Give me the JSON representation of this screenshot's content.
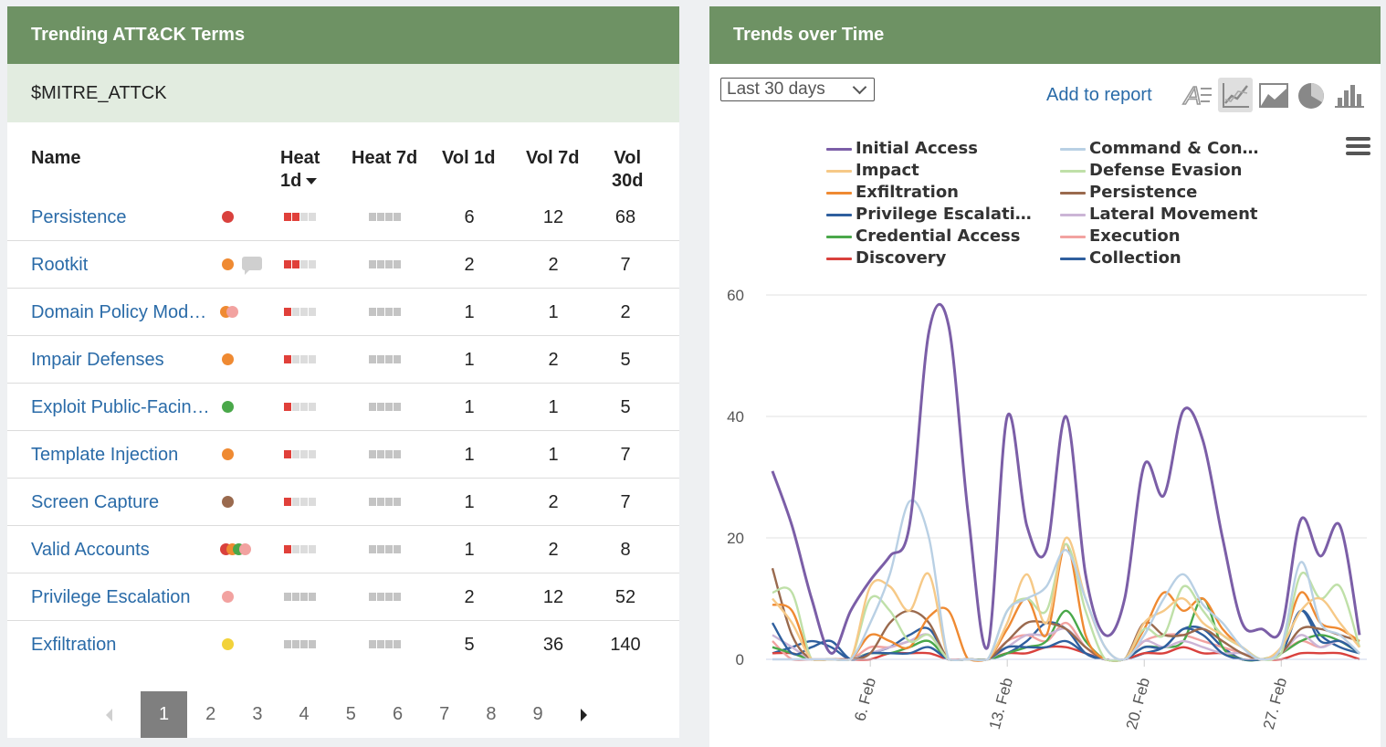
{
  "left_panel": {
    "title": "Trending ATT&CK Terms",
    "subtitle": "$MITRE_ATTCK",
    "columns": {
      "name": "Name",
      "heat1d_line1": "Heat",
      "heat1d_line2": "1d",
      "heat7d": "Heat 7d",
      "vol1d": "Vol 1d",
      "vol7d": "Vol 7d",
      "vol30d_line1": "Vol",
      "vol30d_line2": "30d"
    },
    "rows": [
      {
        "name": "Persistence",
        "dots": [
          "#d9413d"
        ],
        "comment": false,
        "heat1d": 2,
        "heat7d": 0,
        "heat_muted": false,
        "vol1d": "6",
        "vol7d": "12",
        "vol30d": "68"
      },
      {
        "name": "Rootkit",
        "dots": [
          "#ef8a32"
        ],
        "comment": true,
        "heat1d": 2,
        "heat7d": 0,
        "heat_muted": false,
        "vol1d": "2",
        "vol7d": "2",
        "vol30d": "7"
      },
      {
        "name": "Domain Policy Mod…",
        "dots": [
          "#ef8a32",
          "#f2a2a0"
        ],
        "comment": false,
        "heat1d": 1,
        "heat7d": 0,
        "heat_muted": false,
        "vol1d": "1",
        "vol7d": "1",
        "vol30d": "2"
      },
      {
        "name": "Impair Defenses",
        "dots": [
          "#ef8a32"
        ],
        "comment": false,
        "heat1d": 1,
        "heat7d": 0,
        "heat_muted": false,
        "vol1d": "1",
        "vol7d": "2",
        "vol30d": "5"
      },
      {
        "name": "Exploit Public-Facin…",
        "dots": [
          "#4aa84a"
        ],
        "comment": false,
        "heat1d": 1,
        "heat7d": 0,
        "heat_muted": false,
        "vol1d": "1",
        "vol7d": "1",
        "vol30d": "5"
      },
      {
        "name": "Template Injection",
        "dots": [
          "#ef8a32"
        ],
        "comment": false,
        "heat1d": 1,
        "heat7d": 0,
        "heat_muted": false,
        "vol1d": "1",
        "vol7d": "1",
        "vol30d": "7"
      },
      {
        "name": "Screen Capture",
        "dots": [
          "#9a6a4e"
        ],
        "comment": false,
        "heat1d": 1,
        "heat7d": 0,
        "heat_muted": false,
        "vol1d": "1",
        "vol7d": "2",
        "vol30d": "7"
      },
      {
        "name": "Valid Accounts",
        "dots": [
          "#d9413d",
          "#ef8a32",
          "#4aa84a",
          "#f2a2a0"
        ],
        "comment": false,
        "heat1d": 1,
        "heat7d": 0,
        "heat_muted": false,
        "vol1d": "1",
        "vol7d": "2",
        "vol30d": "8"
      },
      {
        "name": "Privilege Escalation",
        "dots": [
          "#f2a2a0"
        ],
        "comment": false,
        "heat1d": 0,
        "heat7d": 0,
        "heat_muted": true,
        "vol1d": "2",
        "vol7d": "12",
        "vol30d": "52"
      },
      {
        "name": "Exfiltration",
        "dots": [
          "#f2d23a"
        ],
        "comment": false,
        "heat1d": 0,
        "heat7d": 0,
        "heat_muted": true,
        "vol1d": "5",
        "vol7d": "36",
        "vol30d": "140"
      }
    ],
    "pagination": {
      "pages": [
        "1",
        "2",
        "3",
        "4",
        "5",
        "6",
        "7",
        "8",
        "9"
      ],
      "current": "1"
    }
  },
  "right_panel": {
    "title": "Trends over Time",
    "range_select": "Last 30 days",
    "add_to_report": "Add to report",
    "chart_type_icons": [
      "text-chart-icon",
      "line-chart-icon",
      "area-chart-icon",
      "pie-chart-icon",
      "bar-chart-icon"
    ],
    "selected_chart_type": "line-chart-icon"
  },
  "chart_data": {
    "type": "line",
    "x": [
      "Feb 1",
      "Feb 2",
      "Feb 3",
      "Feb 4",
      "Feb 5",
      "Feb 6",
      "Feb 7",
      "Feb 8",
      "Feb 9",
      "Feb 10",
      "Feb 11",
      "Feb 12",
      "Feb 13",
      "Feb 14",
      "Feb 15",
      "Feb 16",
      "Feb 17",
      "Feb 18",
      "Feb 19",
      "Feb 20",
      "Feb 21",
      "Feb 22",
      "Feb 23",
      "Feb 24",
      "Feb 25",
      "Feb 26",
      "Feb 27",
      "Feb 28",
      "Mar 1",
      "Mar 2",
      "Mar 3"
    ],
    "x_tick_labels": [
      {
        "x": "Feb 6",
        "label": "6. Feb"
      },
      {
        "x": "Feb 13",
        "label": "13. Feb"
      },
      {
        "x": "Feb 20",
        "label": "20. Feb"
      },
      {
        "x": "Feb 27",
        "label": "27. Feb"
      }
    ],
    "y_ticks": [
      "0",
      "20",
      "40",
      "60"
    ],
    "ylim": [
      0,
      60
    ],
    "grid": true,
    "legend_position": "top",
    "series": [
      {
        "name": "Initial Access",
        "color": "#7b5ea7",
        "values": [
          31,
          22,
          10,
          1,
          8,
          13,
          17,
          22,
          54,
          55,
          24,
          2,
          40,
          22,
          18,
          40,
          14,
          4,
          10,
          32,
          27,
          41,
          36,
          20,
          6,
          5,
          5,
          23,
          17,
          22,
          4
        ]
      },
      {
        "name": "Command & Con…",
        "color": "#b9d0e4",
        "values": [
          0,
          0,
          0,
          0,
          0,
          6,
          14,
          26,
          20,
          0,
          0,
          0,
          8,
          10,
          12,
          18,
          10,
          2,
          0,
          4,
          10,
          14,
          9,
          6,
          2,
          0,
          2,
          16,
          6,
          4,
          1
        ]
      },
      {
        "name": "Impact",
        "color": "#f6c987",
        "values": [
          10,
          6,
          0,
          0,
          0,
          12,
          12,
          8,
          14,
          0,
          0,
          0,
          6,
          14,
          6,
          20,
          10,
          2,
          0,
          6,
          8,
          10,
          6,
          4,
          2,
          0,
          2,
          8,
          10,
          6,
          2
        ]
      },
      {
        "name": "Defense Evasion",
        "color": "#bfe0a8",
        "values": [
          11,
          11,
          0,
          0,
          0,
          10,
          8,
          3,
          4,
          0,
          0,
          0,
          8,
          10,
          8,
          19,
          8,
          0,
          0,
          5,
          4,
          12,
          8,
          4,
          2,
          0,
          1,
          14,
          10,
          12,
          2
        ]
      },
      {
        "name": "Exfiltration",
        "color": "#ef8a32",
        "values": [
          9,
          8,
          0,
          0,
          0,
          4,
          3,
          2,
          7,
          8,
          0,
          0,
          5,
          10,
          4,
          19,
          4,
          0,
          0,
          5,
          11,
          8,
          10,
          5,
          2,
          0,
          2,
          11,
          6,
          5,
          3
        ]
      },
      {
        "name": "Persistence",
        "color": "#9a6a4e",
        "values": [
          15,
          4,
          0,
          0,
          0,
          1,
          6,
          8,
          6,
          0,
          0,
          0,
          3,
          6,
          6,
          5,
          2,
          0,
          0,
          6,
          4,
          4,
          5,
          3,
          1,
          0,
          1,
          5,
          5,
          4,
          3
        ]
      },
      {
        "name": "Privilege Escalati…",
        "color": "#2f5f9e",
        "values": [
          6,
          1,
          2,
          3,
          0,
          1,
          1,
          1,
          2,
          0,
          0,
          0,
          2,
          2,
          2,
          3,
          1,
          0,
          0,
          2,
          2,
          5,
          4,
          1,
          0,
          0,
          1,
          8,
          3,
          3,
          1
        ]
      },
      {
        "name": "Lateral Movement",
        "color": "#cbb5d6",
        "values": [
          4,
          2,
          0,
          0,
          0,
          1,
          2,
          3,
          4,
          0,
          0,
          0,
          2,
          4,
          4,
          5,
          2,
          0,
          0,
          3,
          2,
          3,
          2,
          1,
          1,
          0,
          1,
          4,
          2,
          3,
          1
        ]
      },
      {
        "name": "Credential Access",
        "color": "#4aa84a",
        "values": [
          2,
          1,
          0,
          0,
          0,
          1,
          1,
          2,
          3,
          0,
          0,
          0,
          1,
          2,
          3,
          8,
          3,
          0,
          0,
          2,
          2,
          3,
          10,
          2,
          0,
          0,
          1,
          3,
          4,
          3,
          1
        ]
      },
      {
        "name": "Execution",
        "color": "#f2a2a0",
        "values": [
          3,
          0,
          0,
          0,
          0,
          2,
          2,
          3,
          4,
          0,
          0,
          0,
          3,
          4,
          3,
          6,
          2,
          0,
          0,
          3,
          4,
          4,
          3,
          2,
          1,
          0,
          1,
          3,
          2,
          3,
          1
        ]
      },
      {
        "name": "Discovery",
        "color": "#d9413d",
        "values": [
          1,
          1,
          0,
          0,
          0,
          0,
          1,
          1,
          1,
          0,
          0,
          0,
          1,
          1,
          2,
          2,
          1,
          0,
          0,
          1,
          1,
          2,
          1,
          1,
          0,
          0,
          0,
          1,
          1,
          1,
          0
        ]
      },
      {
        "name": "Collection",
        "color": "#2f5f9e",
        "values": [
          1,
          2,
          3,
          2,
          0,
          1,
          2,
          4,
          5,
          0,
          0,
          0,
          1,
          3,
          6,
          5,
          1,
          0,
          0,
          1,
          2,
          5,
          5,
          2,
          0,
          0,
          1,
          8,
          4,
          2,
          1
        ]
      }
    ]
  }
}
